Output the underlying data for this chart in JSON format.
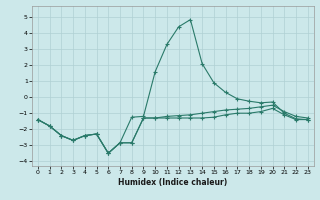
{
  "xlabel": "Humidex (Indice chaleur)",
  "background_color": "#cce8ea",
  "grid_color": "#b0d0d4",
  "line_color": "#2a7a6a",
  "xlim": [
    -0.5,
    23.5
  ],
  "ylim": [
    -4.3,
    5.7
  ],
  "xticks": [
    0,
    1,
    2,
    3,
    4,
    5,
    6,
    7,
    8,
    9,
    10,
    11,
    12,
    13,
    14,
    15,
    16,
    17,
    18,
    19,
    20,
    21,
    22,
    23
  ],
  "yticks": [
    -4,
    -3,
    -2,
    -1,
    0,
    1,
    2,
    3,
    4,
    5
  ],
  "line1_x": [
    0,
    1,
    2,
    3,
    4,
    5,
    6,
    7,
    8,
    9,
    10,
    11,
    12,
    13,
    14,
    15,
    16,
    17,
    18,
    19,
    20,
    21,
    22,
    23
  ],
  "line1_y": [
    -1.4,
    -1.8,
    -2.4,
    -2.7,
    -2.4,
    -2.3,
    -3.5,
    -2.85,
    -2.85,
    -1.3,
    -1.3,
    -1.3,
    -1.3,
    -1.3,
    -1.3,
    -1.25,
    -1.1,
    -1.0,
    -1.0,
    -0.9,
    -0.7,
    -1.1,
    -1.4,
    -1.4
  ],
  "line2_x": [
    0,
    1,
    2,
    3,
    4,
    5,
    6,
    7,
    8,
    9,
    10,
    11,
    12,
    13,
    14,
    15,
    16,
    17,
    18,
    19,
    20,
    21,
    22,
    23
  ],
  "line2_y": [
    -1.4,
    -1.8,
    -2.4,
    -2.7,
    -2.4,
    -2.3,
    -3.5,
    -2.85,
    -2.85,
    -1.3,
    -1.3,
    -1.2,
    -1.15,
    -1.1,
    -1.0,
    -0.9,
    -0.8,
    -0.75,
    -0.7,
    -0.6,
    -0.5,
    -0.9,
    -1.2,
    -1.3
  ],
  "line3_x": [
    0,
    1,
    2,
    3,
    4,
    5,
    6,
    7,
    8,
    9,
    10,
    11,
    12,
    13,
    14,
    15,
    16,
    17,
    18,
    19,
    20,
    21,
    22,
    23
  ],
  "line3_y": [
    -1.4,
    -1.8,
    -2.4,
    -2.7,
    -2.4,
    -2.3,
    -3.5,
    -2.85,
    -1.25,
    -1.2,
    1.6,
    3.3,
    4.4,
    4.85,
    2.1,
    0.9,
    0.3,
    -0.1,
    -0.25,
    -0.35,
    -0.3,
    -1.0,
    -1.35,
    -1.4
  ]
}
